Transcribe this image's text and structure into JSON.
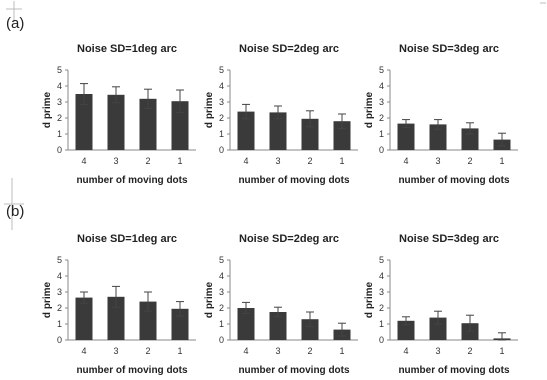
{
  "rows": [
    {
      "label": "(a)"
    },
    {
      "label": "(b)"
    }
  ],
  "chart_data": [
    {
      "type": "bar",
      "row": 0,
      "col": 0,
      "title": "Noise SD=1deg arc",
      "xlabel": "number of moving dots",
      "ylabel": "d prime",
      "categories": [
        "4",
        "3",
        "2",
        "1"
      ],
      "values": [
        3.5,
        3.45,
        3.2,
        3.05
      ],
      "errors": [
        0.65,
        0.5,
        0.6,
        0.7
      ],
      "ylim": [
        0,
        5
      ],
      "yticks": [
        0,
        1,
        2,
        3,
        4,
        5
      ],
      "grid": false
    },
    {
      "type": "bar",
      "row": 0,
      "col": 1,
      "title": "Noise SD=2deg arc",
      "xlabel": "number of moving dots",
      "ylabel": "d prime",
      "categories": [
        "4",
        "3",
        "2",
        "1"
      ],
      "values": [
        2.4,
        2.35,
        1.95,
        1.8
      ],
      "errors": [
        0.45,
        0.4,
        0.5,
        0.45
      ],
      "ylim": [
        0,
        5
      ],
      "yticks": [
        0,
        1,
        2,
        3,
        4,
        5
      ],
      "grid": false
    },
    {
      "type": "bar",
      "row": 0,
      "col": 2,
      "title": "Noise SD=3deg arc",
      "xlabel": "number of moving dots",
      "ylabel": "d prime",
      "categories": [
        "4",
        "3",
        "2",
        "1"
      ],
      "values": [
        1.65,
        1.6,
        1.35,
        0.65
      ],
      "errors": [
        0.25,
        0.3,
        0.35,
        0.4
      ],
      "ylim": [
        0,
        5
      ],
      "yticks": [
        0,
        1,
        2,
        3,
        4,
        5
      ],
      "grid": false
    },
    {
      "type": "bar",
      "row": 1,
      "col": 0,
      "title": "Noise SD=1deg arc",
      "xlabel": "number of moving dots",
      "ylabel": "d prime",
      "categories": [
        "4",
        "3",
        "2",
        "1"
      ],
      "values": [
        2.65,
        2.7,
        2.4,
        1.95
      ],
      "errors": [
        0.35,
        0.65,
        0.6,
        0.45
      ],
      "ylim": [
        0,
        5
      ],
      "yticks": [
        0,
        1,
        2,
        3,
        4,
        5
      ],
      "grid": false
    },
    {
      "type": "bar",
      "row": 1,
      "col": 1,
      "title": "Noise SD=2deg arc",
      "xlabel": "number of moving dots",
      "ylabel": "d prime",
      "categories": [
        "4",
        "3",
        "2",
        "1"
      ],
      "values": [
        2.0,
        1.75,
        1.3,
        0.65
      ],
      "errors": [
        0.35,
        0.3,
        0.45,
        0.4
      ],
      "ylim": [
        0,
        5
      ],
      "yticks": [
        0,
        1,
        2,
        3,
        4,
        5
      ],
      "grid": false
    },
    {
      "type": "bar",
      "row": 1,
      "col": 2,
      "title": "Noise SD=3deg arc",
      "xlabel": "number of moving dots",
      "ylabel": "d prime",
      "categories": [
        "4",
        "3",
        "2",
        "1"
      ],
      "values": [
        1.2,
        1.4,
        1.05,
        0.1
      ],
      "errors": [
        0.25,
        0.4,
        0.5,
        0.35
      ],
      "ylim": [
        0,
        5
      ],
      "yticks": [
        0,
        1,
        2,
        3,
        4,
        5
      ],
      "grid": false
    }
  ]
}
